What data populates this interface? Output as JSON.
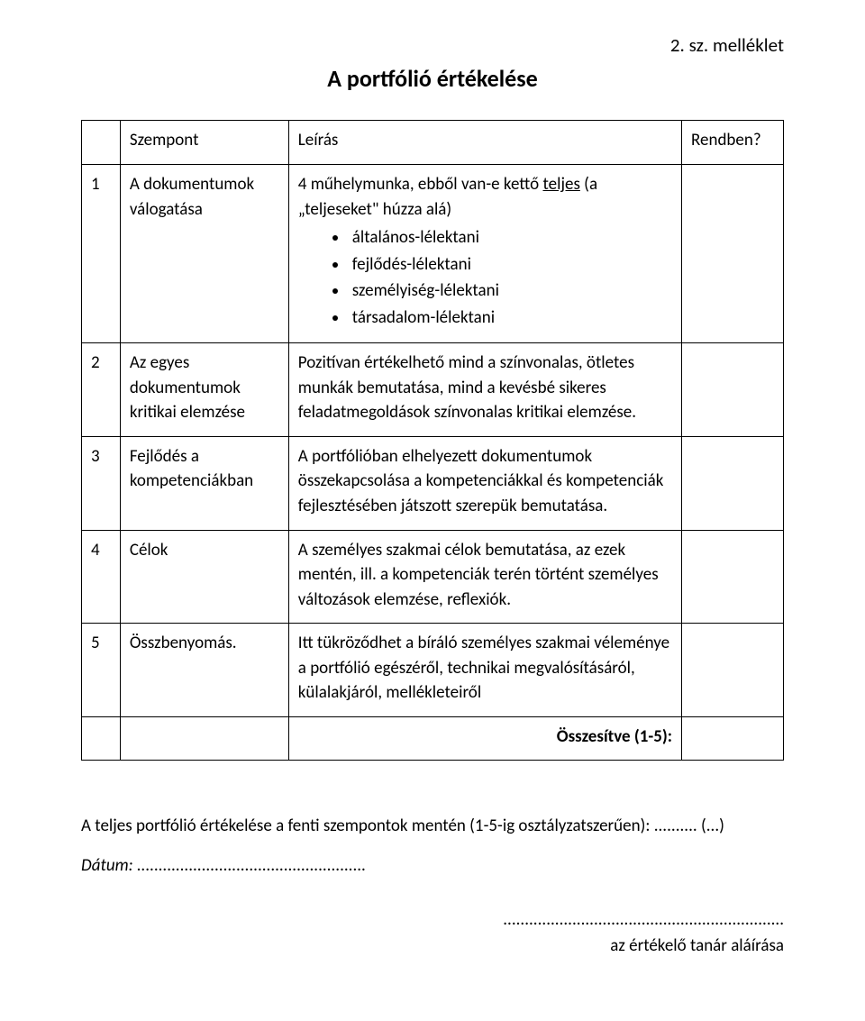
{
  "annex_label": "2. sz. melléklet",
  "title": "A portfólió értékelése",
  "header": {
    "col_num": "",
    "col_aspect": "Szempont",
    "col_desc": "Leírás",
    "col_ok": "Rendben?"
  },
  "rows": {
    "r1": {
      "num": "1",
      "aspect": "A dokumentumok válogatása",
      "desc_lead_pre": "4 műhelymunka, ebből van-e kettő ",
      "desc_lead_underlined": "teljes",
      "desc_lead_post": " (a „teljeseket\" húzza alá)",
      "bullets": [
        "általános-lélektani",
        "fejlődés-lélektani",
        "személyiség-lélektani",
        "társadalom-lélektani"
      ]
    },
    "r2": {
      "num": "2",
      "aspect": "Az egyes dokumentumok kritikai elemzése",
      "desc": "Pozitívan értékelhető  mind a színvonalas, ötletes munkák bemutatása, mind a kevésbé sikeres feladatmegoldások színvonalas kritikai elemzése."
    },
    "r3": {
      "num": "3",
      "aspect": "Fejlődés a kompetenciákban",
      "desc": "A portfólióban elhelyezett dokumentumok összekapcsolása a kompetenciákkal és kompetenciák fejlesztésében játszott szerepük bemutatása."
    },
    "r4": {
      "num": "4",
      "aspect": "Célok",
      "desc": "A személyes szakmai célok bemutatása, az ezek mentén, ill. a kompetenciák terén történt személyes változások elemzése, reflexiók."
    },
    "r5": {
      "num": "5",
      "aspect": "Összbenyomás.",
      "desc": "Itt  tükröződhet a bíráló személyes szakmai véleménye a portfólió egészéről, technikai megvalósításáról, külalakjáról, mellékleteiről"
    }
  },
  "summary_label": "Összesítve (1-5):",
  "footer": {
    "line1": "A teljes portfólió értékelése a fenti szempontok mentén (1-5-ig osztályzatszerűen): .......... (...)",
    "date_label": "Dátum: ",
    "date_dots": ".....................................................",
    "sign_dots": ".................................................................",
    "sign_label": "az értékelő tanár aláírása"
  }
}
